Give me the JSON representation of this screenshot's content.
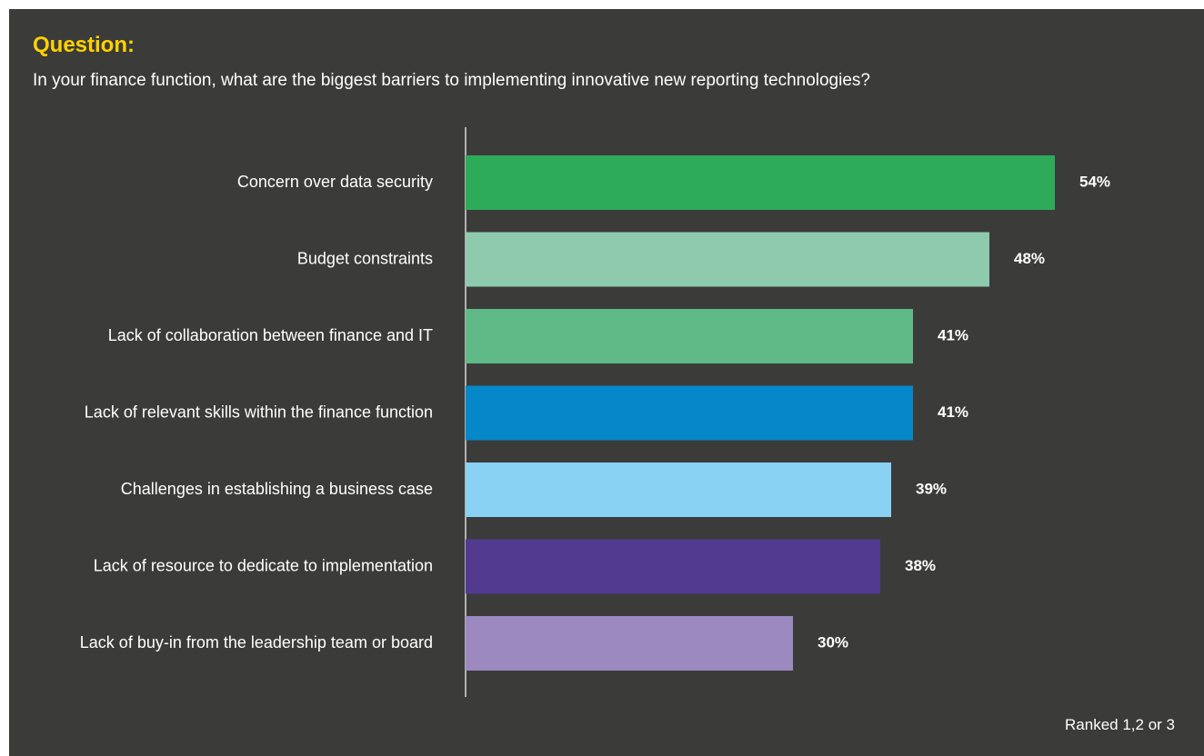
{
  "header": {
    "label": "Question:",
    "question": "In your finance function, what are the biggest barriers to implementing innovative new reporting technologies?"
  },
  "footnote": "Ranked 1,2 or 3",
  "colors": {
    "background": "#3b3b3a",
    "accent": "#ffd200",
    "axis": "#ffffff"
  },
  "chart_data": {
    "type": "bar",
    "orientation": "horizontal",
    "categories": [
      "Concern over data security",
      "Budget constraints",
      "Lack of collaboration between finance and IT",
      "Lack of relevant skills within the finance function",
      "Challenges in establishing a business case",
      "Lack of resource to dedicate to implementation",
      "Lack of buy-in from the leadership team or board"
    ],
    "values": [
      54,
      48,
      41,
      41,
      39,
      38,
      30
    ],
    "value_labels": [
      "54%",
      "48%",
      "41%",
      "41%",
      "39%",
      "38%",
      "30%"
    ],
    "bar_colors": [
      "#2eab5a",
      "#8ecaae",
      "#5fba88",
      "#0587c9",
      "#8ad2f4",
      "#523a91",
      "#9c89c0"
    ],
    "xlim": [
      0,
      100
    ],
    "grid": false,
    "legend": "none"
  }
}
